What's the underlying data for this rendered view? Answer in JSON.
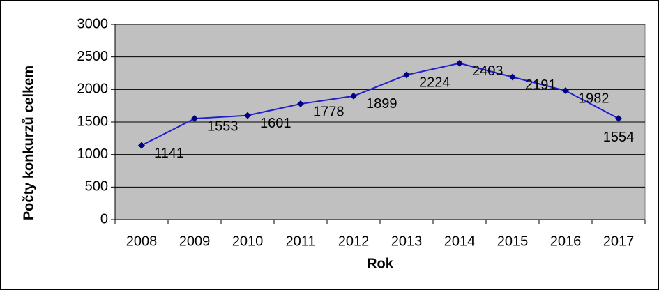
{
  "chart_data": {
    "type": "line",
    "x_label": "Rok",
    "y_label": "Počty konkurzů celkem",
    "categories": [
      "2008",
      "2009",
      "2010",
      "2011",
      "2012",
      "2013",
      "2014",
      "2015",
      "2016",
      "2017"
    ],
    "values": [
      1141,
      1553,
      1601,
      1778,
      1899,
      2224,
      2403,
      2191,
      1982,
      1554
    ],
    "color": "#1f1fd0",
    "marker_color": "#000080",
    "plot_background": "#c0c0c0",
    "ylim": [
      0,
      3000
    ],
    "yticks": [
      0,
      500,
      1000,
      1500,
      2000,
      2500,
      3000
    ],
    "grid": true
  }
}
